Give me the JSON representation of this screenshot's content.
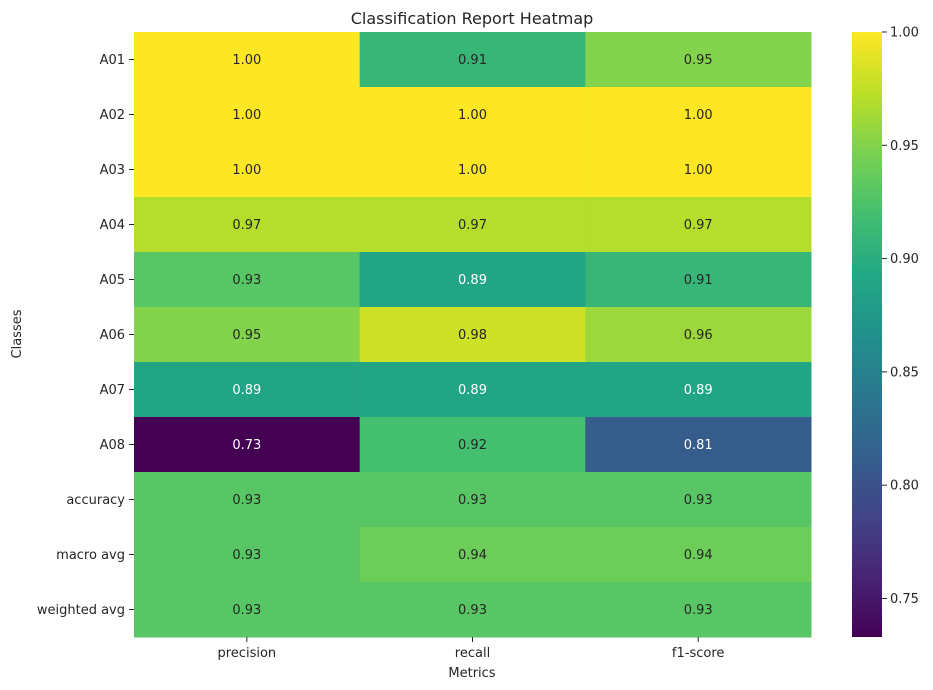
{
  "chart_data": {
    "type": "heatmap",
    "title": "Classification Report Heatmap",
    "xlabel": "Metrics",
    "ylabel": "Classes",
    "columns": [
      "precision",
      "recall",
      "f1-score"
    ],
    "rows": [
      "A01",
      "A02",
      "A03",
      "A04",
      "A05",
      "A06",
      "A07",
      "A08",
      "accuracy",
      "macro avg",
      "weighted avg"
    ],
    "values": [
      [
        1.0,
        0.91,
        0.95
      ],
      [
        1.0,
        1.0,
        1.0
      ],
      [
        1.0,
        1.0,
        1.0
      ],
      [
        0.97,
        0.97,
        0.97
      ],
      [
        0.93,
        0.89,
        0.91
      ],
      [
        0.95,
        0.98,
        0.96
      ],
      [
        0.89,
        0.89,
        0.89
      ],
      [
        0.73,
        0.92,
        0.81
      ],
      [
        0.93,
        0.93,
        0.93
      ],
      [
        0.93,
        0.94,
        0.94
      ],
      [
        0.93,
        0.93,
        0.93
      ]
    ],
    "labels": [
      [
        "1.00",
        "0.91",
        "0.95"
      ],
      [
        "1.00",
        "1.00",
        "1.00"
      ],
      [
        "1.00",
        "1.00",
        "1.00"
      ],
      [
        "0.97",
        "0.97",
        "0.97"
      ],
      [
        "0.93",
        "0.89",
        "0.91"
      ],
      [
        "0.95",
        "0.98",
        "0.96"
      ],
      [
        "0.89",
        "0.89",
        "0.89"
      ],
      [
        "0.73",
        "0.92",
        "0.81"
      ],
      [
        "0.93",
        "0.93",
        "0.93"
      ],
      [
        "0.93",
        "0.94",
        "0.94"
      ],
      [
        "0.93",
        "0.93",
        "0.93"
      ]
    ],
    "colormap": "viridis",
    "vmin": 0.733,
    "vmax": 1.0,
    "colorbar_ticks": [
      "0.75",
      "0.80",
      "0.85",
      "0.90",
      "0.95",
      "1.00"
    ],
    "colorbar_tick_values": [
      0.75,
      0.8,
      0.85,
      0.9,
      0.95,
      1.0
    ],
    "grid": false,
    "legend": "colorbar-right"
  }
}
